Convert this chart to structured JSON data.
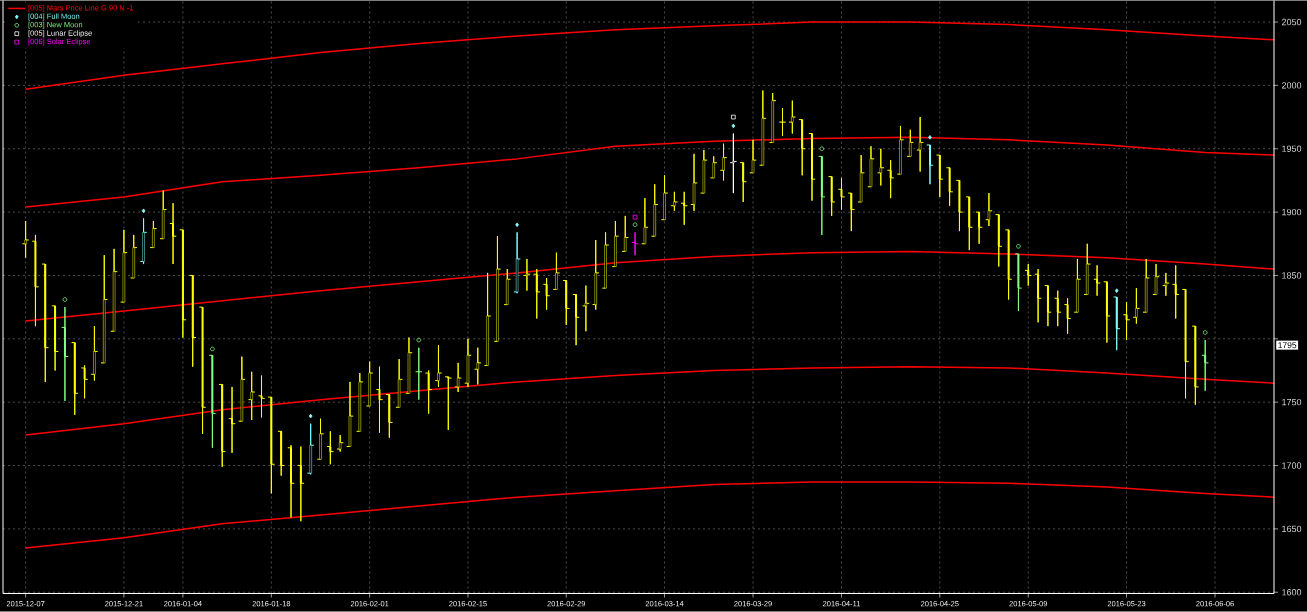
{
  "chart_data": {
    "type": "candlestick",
    "categories": [
      "2015-12-07",
      null,
      null,
      null,
      null,
      null,
      null,
      null,
      null,
      null,
      "2015-12-21",
      null,
      null,
      null,
      null,
      null,
      "2016-01-04",
      null,
      null,
      null,
      null,
      null,
      null,
      null,
      null,
      "2016-01-18",
      null,
      null,
      null,
      null,
      null,
      null,
      null,
      null,
      null,
      "2016-02-01",
      null,
      null,
      null,
      null,
      null,
      null,
      null,
      null,
      null,
      "2016-02-15",
      null,
      null,
      null,
      null,
      null,
      null,
      null,
      null,
      null,
      "2016-02-29",
      null,
      null,
      null,
      null,
      null,
      null,
      null,
      null,
      null,
      "2016-03-14",
      null,
      null,
      null,
      null,
      null,
      null,
      null,
      null,
      "2016-03-29",
      null,
      null,
      null,
      null,
      null,
      null,
      null,
      null,
      "2016-04-11",
      null,
      null,
      null,
      null,
      null,
      null,
      null,
      null,
      null,
      "2016-04-25",
      null,
      null,
      null,
      null,
      null,
      null,
      null,
      null,
      "2016-05-09",
      null,
      null,
      null,
      null,
      null,
      null,
      null,
      null,
      null,
      "2016-05-23",
      null,
      null,
      null,
      null,
      null,
      null,
      null,
      null,
      "2016-06-06",
      null,
      null,
      null,
      null,
      null,
      null
    ],
    "ohlc": [
      [
        1875,
        1893,
        1864,
        1878
      ],
      [
        1877,
        1882,
        1810,
        1841
      ],
      [
        1859,
        1859,
        1766,
        1793
      ],
      [
        1826,
        1826,
        1775,
        1790
      ],
      [
        1809,
        1825,
        1751,
        1786
      ],
      [
        1797,
        1797,
        1740,
        1757
      ],
      [
        1777,
        1779,
        1753,
        1768
      ],
      [
        1772,
        1810,
        1767,
        1790
      ],
      [
        1781,
        1866,
        1781,
        1831
      ],
      [
        1806,
        1871,
        1806,
        1853
      ],
      [
        1829,
        1886,
        1829,
        1868
      ],
      [
        1848,
        1882,
        1848,
        1872
      ],
      [
        1861,
        1895,
        1859,
        1884
      ],
      [
        1872,
        1893,
        1872,
        1887
      ],
      [
        1879,
        1917,
        1879,
        1902
      ],
      [
        1891,
        1907,
        1859,
        1881
      ],
      [
        1886,
        1886,
        1801,
        1815
      ],
      [
        1850,
        1850,
        1778,
        1801
      ],
      [
        1825,
        1825,
        1725,
        1746
      ],
      [
        1787,
        1787,
        1714,
        1741
      ],
      [
        1764,
        1764,
        1699,
        1711
      ],
      [
        1737,
        1762,
        1710,
        1733
      ],
      [
        1735,
        1786,
        1735,
        1768
      ],
      [
        1752,
        1774,
        1736,
        1758
      ],
      [
        1755,
        1771,
        1738,
        1753
      ],
      [
        1754,
        1754,
        1678,
        1701
      ],
      [
        1727,
        1727,
        1692,
        1700
      ],
      [
        1714,
        1716,
        1659,
        1686
      ],
      [
        1700,
        1715,
        1656,
        1686
      ],
      [
        1694,
        1733,
        1693,
        1716
      ],
      [
        1705,
        1737,
        1705,
        1725
      ],
      [
        1715,
        1727,
        1701,
        1711
      ],
      [
        1713,
        1724,
        1711,
        1718
      ],
      [
        1715,
        1766,
        1715,
        1739
      ],
      [
        1727,
        1773,
        1727,
        1766
      ],
      [
        1747,
        1782,
        1747,
        1773
      ],
      [
        1760,
        1778,
        1726,
        1752
      ],
      [
        1756,
        1756,
        1722,
        1734
      ],
      [
        1746,
        1784,
        1746,
        1768
      ],
      [
        1757,
        1801,
        1757,
        1789
      ],
      [
        1774,
        1793,
        1752,
        1774
      ],
      [
        1773,
        1775,
        1741,
        1760
      ],
      [
        1767,
        1795,
        1762,
        1773
      ],
      [
        1770,
        1770,
        1728,
        1769
      ],
      [
        1762,
        1781,
        1758,
        1769
      ],
      [
        1765,
        1800,
        1762,
        1787
      ],
      [
        1776,
        1793,
        1764,
        1781
      ],
      [
        1779,
        1852,
        1779,
        1818
      ],
      [
        1798,
        1881,
        1798,
        1855
      ],
      [
        1827,
        1855,
        1827,
        1847
      ],
      [
        1837,
        1884,
        1836,
        1863
      ],
      [
        1850,
        1863,
        1838,
        1851
      ],
      [
        1851,
        1855,
        1816,
        1837
      ],
      [
        1843,
        1848,
        1823,
        1834
      ],
      [
        1839,
        1868,
        1839,
        1852
      ],
      [
        1846,
        1846,
        1811,
        1824
      ],
      [
        1835,
        1835,
        1795,
        1817
      ],
      [
        1826,
        1842,
        1806,
        1828
      ],
      [
        1827,
        1878,
        1823,
        1852
      ],
      [
        1840,
        1884,
        1840,
        1874
      ],
      [
        1857,
        1893,
        1857,
        1881
      ],
      [
        1869,
        1897,
        1869,
        1880
      ],
      [
        1876,
        1884,
        1866,
        1875
      ],
      [
        1875,
        1911,
        1875,
        1888
      ],
      [
        1881,
        1922,
        1881,
        1906
      ],
      [
        1894,
        1929,
        1894,
        1915
      ],
      [
        1905,
        1916,
        1901,
        1908
      ],
      [
        1907,
        1916,
        1890,
        1905
      ],
      [
        1906,
        1946,
        1901,
        1923
      ],
      [
        1915,
        1949,
        1915,
        1941
      ],
      [
        1927,
        1944,
        1927,
        1939
      ],
      [
        1933,
        1954,
        1925,
        1943
      ],
      [
        1939,
        1962,
        1915,
        1940
      ],
      [
        1939,
        1939,
        1908,
        1924
      ],
      [
        1931,
        1957,
        1931,
        1941
      ],
      [
        1937,
        1996,
        1937,
        1974
      ],
      [
        1955,
        1994,
        1955,
        1988
      ],
      [
        1971,
        1982,
        1960,
        1971
      ],
      [
        1971,
        1988,
        1962,
        1975
      ],
      [
        1973,
        1973,
        1929,
        1950
      ],
      [
        1962,
        1962,
        1909,
        1926
      ],
      [
        1944,
        1944,
        1882,
        1912
      ],
      [
        1928,
        1928,
        1897,
        1908
      ],
      [
        1918,
        1927,
        1902,
        1912
      ],
      [
        1915,
        1915,
        1885,
        1902
      ],
      [
        1908,
        1945,
        1908,
        1931
      ],
      [
        1920,
        1952,
        1920,
        1942
      ],
      [
        1931,
        1950,
        1921,
        1935
      ],
      [
        1933,
        1941,
        1911,
        1927
      ],
      [
        1930,
        1968,
        1930,
        1957
      ],
      [
        1944,
        1965,
        1944,
        1955
      ],
      [
        1949,
        1975,
        1932,
        1955
      ],
      [
        1953,
        1953,
        1922,
        1937
      ],
      [
        1945,
        1945,
        1912,
        1926
      ],
      [
        1935,
        1935,
        1905,
        1916
      ],
      [
        1925,
        1925,
        1885,
        1900
      ],
      [
        1912,
        1912,
        1870,
        1888
      ],
      [
        1900,
        1900,
        1875,
        1888
      ],
      [
        1894,
        1915,
        1889,
        1901
      ],
      [
        1898,
        1898,
        1857,
        1873
      ],
      [
        1886,
        1886,
        1831,
        1847
      ],
      [
        1867,
        1867,
        1822,
        1840
      ],
      [
        1854,
        1859,
        1842,
        1850
      ],
      [
        1851,
        1855,
        1813,
        1832
      ],
      [
        1842,
        1842,
        1810,
        1821
      ],
      [
        1832,
        1838,
        1810,
        1821
      ],
      [
        1827,
        1832,
        1804,
        1816
      ],
      [
        1821,
        1863,
        1821,
        1847
      ],
      [
        1835,
        1875,
        1835,
        1859
      ],
      [
        1847,
        1858,
        1834,
        1844
      ],
      [
        1845,
        1845,
        1797,
        1818
      ],
      [
        1833,
        1833,
        1791,
        1808
      ],
      [
        1819,
        1829,
        1799,
        1815
      ],
      [
        1817,
        1840,
        1812,
        1824
      ],
      [
        1821,
        1863,
        1821,
        1848
      ],
      [
        1835,
        1859,
        1835,
        1849
      ],
      [
        1842,
        1852,
        1834,
        1844
      ],
      [
        1843,
        1858,
        1816,
        1835
      ],
      [
        1839,
        1839,
        1753,
        1782
      ],
      [
        1810,
        1810,
        1748,
        1762
      ],
      [
        1787,
        1799,
        1759,
        1781
      ],
      null,
      null,
      null,
      null,
      null,
      null,
      null
    ],
    "colors": [
      "#ffff00",
      "#ffff00",
      "#ffff00",
      "#ffff00",
      "#80ff80",
      "#ffff00",
      "#ffff00",
      "#ffff00",
      "#ffff00",
      "#ffff00",
      "#ffff00",
      "#ffff00",
      "#80ffff",
      "#ffff00",
      "#ffff00",
      "#ffff00",
      "#ffff00",
      "#ffff00",
      "#ffff00",
      "#80ff80",
      "#ffff00",
      "#ffff00",
      "#ffff00",
      "#ffff00",
      "#ffff00",
      "#ffff00",
      "#ffff00",
      "#ffff00",
      "#ffff00",
      "#80ffff",
      "#ffff00",
      "#ffff00",
      "#ffff00",
      "#ffff00",
      "#ffff00",
      "#ffff00",
      "#ffff00",
      "#ffff00",
      "#ffff00",
      "#ffff00",
      "#80ff80",
      "#ffff00",
      "#ffff00",
      "#ffff00",
      "#ffff00",
      "#ffff00",
      "#ffff00",
      "#ffff00",
      "#ffff00",
      "#ffff00",
      "#80ffff",
      "#ffff00",
      "#ffff00",
      "#ffff00",
      "#ffff00",
      "#ffff00",
      "#ffff00",
      "#ffff00",
      "#ffff00",
      "#ffff00",
      "#ffff00",
      "#ffff00",
      "#ff00ff",
      "#ffff00",
      "#ffff00",
      "#ffff00",
      "#ffff00",
      "#ffff00",
      "#ffff00",
      "#ffff00",
      "#ffff00",
      "#ffff00",
      "#ffffff",
      "#ffff00",
      "#ffff00",
      "#ffff00",
      "#ffff00",
      "#ffff00",
      "#ffff00",
      "#ffff00",
      "#ffff00",
      "#80ff80",
      "#ffff00",
      "#ffff00",
      "#ffff00",
      "#ffff00",
      "#ffff00",
      "#ffff00",
      "#ffff00",
      "#ffff00",
      "#ffff00",
      "#ffff00",
      "#80ffff",
      "#ffff00",
      "#ffff00",
      "#ffff00",
      "#ffff00",
      "#ffff00",
      "#ffff00",
      "#ffff00",
      "#ffff00",
      "#80ff80",
      "#ffff00",
      "#ffff00",
      "#ffff00",
      "#ffff00",
      "#ffff00",
      "#ffff00",
      "#ffff00",
      "#ffff00",
      "#ffff00",
      "#80ffff",
      "#ffff00",
      "#ffff00",
      "#ffff00",
      "#ffff00",
      "#ffff00",
      "#ffff00",
      "#ffff00",
      "#ffff00",
      "#80ff80",
      null,
      null,
      null,
      null,
      null,
      null,
      null
    ],
    "series": [
      {
        "name": "[005] Mars Price Line G 90 N -1",
        "type": "line",
        "color": "#ff0000",
        "values": [
          1997,
          null,
          null,
          null,
          null,
          null,
          null,
          null,
          null,
          null,
          2008,
          null,
          null,
          null,
          null,
          null,
          null,
          null,
          null,
          null,
          2017,
          null,
          null,
          null,
          null,
          null,
          null,
          null,
          null,
          null,
          2026,
          null,
          null,
          null,
          null,
          null,
          null,
          null,
          null,
          null,
          2033,
          null,
          null,
          null,
          null,
          null,
          null,
          null,
          null,
          null,
          2039,
          null,
          null,
          null,
          null,
          null,
          null,
          null,
          null,
          null,
          2044,
          null,
          null,
          null,
          null,
          null,
          null,
          null,
          null,
          null,
          2047,
          null,
          null,
          null,
          null,
          null,
          null,
          null,
          null,
          null,
          2050,
          null,
          null,
          null,
          null,
          null,
          null,
          null,
          null,
          null,
          2050,
          null,
          null,
          null,
          null,
          null,
          null,
          null,
          null,
          null,
          2048,
          null,
          null,
          null,
          null,
          null,
          null,
          null,
          null,
          null,
          2044,
          null,
          null,
          null,
          null,
          null,
          null,
          null,
          null,
          null,
          2039,
          null,
          null,
          null,
          null,
          null,
          null,
          2036
        ]
      },
      {
        "type": "line",
        "color": "#ff0000",
        "values": [
          1904,
          null,
          null,
          null,
          null,
          null,
          null,
          null,
          null,
          null,
          1912,
          null,
          null,
          null,
          null,
          null,
          null,
          null,
          null,
          null,
          1924,
          null,
          null,
          null,
          null,
          null,
          null,
          null,
          null,
          null,
          1929,
          null,
          null,
          null,
          null,
          null,
          null,
          null,
          null,
          null,
          1935,
          null,
          null,
          null,
          null,
          null,
          null,
          null,
          null,
          null,
          1942,
          null,
          null,
          null,
          null,
          null,
          null,
          null,
          null,
          null,
          1952,
          null,
          null,
          null,
          null,
          null,
          null,
          null,
          null,
          null,
          1956,
          null,
          null,
          null,
          null,
          null,
          null,
          null,
          null,
          null,
          1958,
          null,
          null,
          null,
          null,
          null,
          null,
          null,
          null,
          null,
          1959,
          null,
          null,
          null,
          null,
          null,
          null,
          null,
          null,
          null,
          1957,
          null,
          null,
          null,
          null,
          null,
          null,
          null,
          null,
          null,
          1953,
          null,
          null,
          null,
          null,
          null,
          null,
          null,
          null,
          null,
          1947,
          null,
          null,
          null,
          null,
          null,
          null,
          1945
        ]
      },
      {
        "type": "line",
        "color": "#ff0000",
        "values": [
          1814,
          null,
          null,
          null,
          null,
          null,
          null,
          null,
          null,
          null,
          1822,
          null,
          null,
          null,
          null,
          null,
          null,
          null,
          null,
          null,
          1830,
          null,
          null,
          null,
          null,
          null,
          null,
          null,
          null,
          null,
          1838,
          null,
          null,
          null,
          null,
          null,
          null,
          null,
          null,
          null,
          1845,
          null,
          null,
          null,
          null,
          null,
          null,
          null,
          null,
          null,
          1852,
          null,
          null,
          null,
          null,
          null,
          null,
          null,
          null,
          null,
          1860,
          null,
          null,
          null,
          null,
          null,
          null,
          null,
          null,
          null,
          1865,
          null,
          null,
          null,
          null,
          null,
          null,
          null,
          null,
          null,
          1868,
          null,
          null,
          null,
          null,
          null,
          null,
          null,
          null,
          null,
          1869,
          null,
          null,
          null,
          null,
          null,
          null,
          null,
          null,
          null,
          1867,
          null,
          null,
          null,
          null,
          null,
          null,
          null,
          null,
          null,
          1864,
          null,
          null,
          null,
          null,
          null,
          null,
          null,
          null,
          null,
          1859,
          null,
          null,
          null,
          null,
          null,
          null,
          1855
        ]
      },
      {
        "type": "line",
        "color": "#ff0000",
        "values": [
          1724,
          null,
          null,
          null,
          null,
          null,
          null,
          null,
          null,
          null,
          1733,
          null,
          null,
          null,
          null,
          null,
          null,
          null,
          null,
          null,
          1744,
          null,
          null,
          null,
          null,
          null,
          null,
          null,
          null,
          null,
          1752,
          null,
          null,
          null,
          null,
          null,
          null,
          null,
          null,
          null,
          1759,
          null,
          null,
          null,
          null,
          null,
          null,
          null,
          null,
          null,
          1766,
          null,
          null,
          null,
          null,
          null,
          null,
          null,
          null,
          null,
          1771,
          null,
          null,
          null,
          null,
          null,
          null,
          null,
          null,
          null,
          1775,
          null,
          null,
          null,
          null,
          null,
          null,
          null,
          null,
          null,
          1777,
          null,
          null,
          null,
          null,
          null,
          null,
          null,
          null,
          null,
          1778,
          null,
          null,
          null,
          null,
          null,
          null,
          null,
          null,
          null,
          1777,
          null,
          null,
          null,
          null,
          null,
          null,
          null,
          null,
          null,
          1773,
          null,
          null,
          null,
          null,
          null,
          null,
          null,
          null,
          null,
          1768,
          null,
          null,
          null,
          null,
          null,
          null,
          1765
        ]
      },
      {
        "type": "line",
        "color": "#ff0000",
        "values": [
          1635,
          null,
          null,
          null,
          null,
          null,
          null,
          null,
          null,
          null,
          1643,
          null,
          null,
          null,
          null,
          null,
          null,
          null,
          null,
          null,
          1654,
          null,
          null,
          null,
          null,
          null,
          null,
          null,
          null,
          null,
          1661,
          null,
          null,
          null,
          null,
          null,
          null,
          null,
          null,
          null,
          1668,
          null,
          null,
          null,
          null,
          null,
          null,
          null,
          null,
          null,
          1675,
          null,
          null,
          null,
          null,
          null,
          null,
          null,
          null,
          null,
          1680,
          null,
          null,
          null,
          null,
          null,
          null,
          null,
          null,
          null,
          1685,
          null,
          null,
          null,
          null,
          null,
          null,
          null,
          null,
          null,
          1687,
          null,
          null,
          null,
          null,
          null,
          null,
          null,
          null,
          null,
          1687,
          null,
          null,
          null,
          null,
          null,
          null,
          null,
          null,
          null,
          1686,
          null,
          null,
          null,
          null,
          null,
          null,
          null,
          null,
          null,
          1683,
          null,
          null,
          null,
          null,
          null,
          null,
          null,
          null,
          null,
          1678,
          null,
          null,
          null,
          null,
          null,
          null,
          1675
        ]
      },
      {
        "name": "[004] Full Moon",
        "type": "scatter",
        "marker": "diamond",
        "color": "#80ffff",
        "values": [
          null,
          null,
          null,
          null,
          null,
          null,
          null,
          null,
          null,
          null,
          null,
          null,
          1901,
          null,
          null,
          null,
          null,
          null,
          null,
          null,
          null,
          null,
          null,
          null,
          null,
          null,
          null,
          null,
          null,
          1739,
          null,
          null,
          null,
          null,
          null,
          null,
          null,
          null,
          null,
          null,
          null,
          null,
          null,
          null,
          null,
          null,
          null,
          null,
          null,
          null,
          1890,
          null,
          null,
          null,
          null,
          null,
          null,
          null,
          null,
          null,
          null,
          null,
          null,
          null,
          null,
          null,
          null,
          null,
          null,
          null,
          null,
          null,
          1968,
          null,
          null,
          null,
          null,
          null,
          null,
          null,
          null,
          null,
          null,
          null,
          null,
          null,
          null,
          null,
          null,
          null,
          null,
          null,
          1959,
          null,
          null,
          null,
          null,
          null,
          null,
          null,
          null,
          null,
          null,
          null,
          null,
          null,
          null,
          null,
          null,
          null,
          null,
          1838,
          null,
          null,
          null,
          null,
          null,
          null,
          null,
          null,
          null,
          null,
          null,
          null,
          null,
          null,
          null,
          null
        ]
      },
      {
        "name": "[003] New Moon",
        "type": "scatter",
        "marker": "circle",
        "color": "#80ff80",
        "values": [
          null,
          null,
          null,
          null,
          1831,
          null,
          null,
          null,
          null,
          null,
          null,
          null,
          null,
          null,
          null,
          null,
          null,
          null,
          null,
          1792,
          null,
          null,
          null,
          null,
          null,
          null,
          null,
          null,
          null,
          null,
          null,
          null,
          null,
          null,
          null,
          null,
          null,
          null,
          null,
          null,
          1799,
          null,
          null,
          null,
          null,
          null,
          null,
          null,
          null,
          null,
          null,
          null,
          null,
          null,
          null,
          null,
          null,
          null,
          null,
          null,
          null,
          null,
          1890,
          null,
          null,
          null,
          null,
          null,
          null,
          null,
          null,
          null,
          null,
          null,
          null,
          null,
          null,
          null,
          null,
          null,
          null,
          1950,
          null,
          null,
          null,
          null,
          null,
          null,
          null,
          null,
          null,
          null,
          null,
          null,
          null,
          null,
          null,
          null,
          null,
          null,
          null,
          1873,
          null,
          null,
          null,
          null,
          null,
          null,
          null,
          null,
          null,
          null,
          null,
          null,
          null,
          null,
          null,
          null,
          null,
          null,
          1805,
          null,
          null,
          null,
          null,
          null,
          null,
          null
        ]
      },
      {
        "name": "[005] Lunar Eclipse",
        "type": "scatter",
        "marker": "square",
        "color": "#ffffff",
        "values": [
          null,
          null,
          null,
          null,
          null,
          null,
          null,
          null,
          null,
          null,
          null,
          null,
          null,
          null,
          null,
          null,
          null,
          null,
          null,
          null,
          null,
          null,
          null,
          null,
          null,
          null,
          null,
          null,
          null,
          null,
          null,
          null,
          null,
          null,
          null,
          null,
          null,
          null,
          null,
          null,
          null,
          null,
          null,
          null,
          null,
          null,
          null,
          null,
          null,
          null,
          null,
          null,
          null,
          null,
          null,
          null,
          null,
          null,
          null,
          null,
          null,
          null,
          null,
          null,
          null,
          null,
          null,
          null,
          null,
          null,
          null,
          null,
          1975,
          null,
          null,
          null,
          null,
          null,
          null,
          null,
          null,
          null,
          null,
          null,
          null,
          null,
          null,
          null,
          null,
          null,
          null,
          null,
          null,
          null,
          null,
          null,
          null,
          null,
          null,
          null,
          null,
          null,
          null,
          null,
          null,
          null,
          null,
          null,
          null,
          null,
          null,
          null,
          null,
          null,
          null,
          null,
          null,
          null,
          null,
          null,
          null,
          null,
          null,
          null,
          null,
          null,
          null,
          null
        ]
      },
      {
        "name": "[006] Solar Eclipse",
        "type": "scatter",
        "marker": "square",
        "color": "#ff00ff",
        "values": [
          null,
          null,
          null,
          null,
          null,
          null,
          null,
          null,
          null,
          null,
          null,
          null,
          null,
          null,
          null,
          null,
          null,
          null,
          null,
          null,
          null,
          null,
          null,
          null,
          null,
          null,
          null,
          null,
          null,
          null,
          null,
          null,
          null,
          null,
          null,
          null,
          null,
          null,
          null,
          null,
          null,
          null,
          null,
          null,
          null,
          null,
          null,
          null,
          null,
          null,
          null,
          null,
          null,
          null,
          null,
          null,
          null,
          null,
          null,
          null,
          null,
          null,
          1896,
          null,
          null,
          null,
          null,
          null,
          null,
          null,
          null,
          null,
          null,
          null,
          null,
          null,
          null,
          null,
          null,
          null,
          null,
          null,
          null,
          null,
          null,
          null,
          null,
          null,
          null,
          null,
          null,
          null,
          null,
          null,
          null,
          null,
          null,
          null,
          null,
          null,
          null,
          null,
          null,
          null,
          null,
          null,
          null,
          null,
          null,
          null,
          null,
          null,
          null,
          null,
          null,
          null,
          null,
          null,
          null,
          null,
          null,
          null,
          null,
          null,
          null,
          null,
          null,
          null
        ]
      }
    ],
    "ylim": [
      1599,
      2067
    ],
    "yticks": [
      1600,
      1650,
      1700,
      1750,
      {
        "value": 1800,
        "label": null
      },
      1850,
      1900,
      1950,
      2000,
      2050
    ],
    "annotations": [
      {
        "text": "1795",
        "y": 1795
      }
    ],
    "grid": true,
    "legend": "top left"
  }
}
